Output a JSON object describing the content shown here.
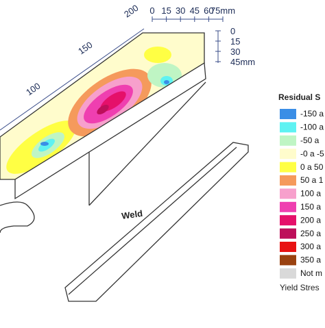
{
  "scale_along": [
    "200",
    "150",
    "100"
  ],
  "scale_width": [
    "0",
    "15",
    "30",
    "45",
    "60",
    "75mm"
  ],
  "scale_depth": [
    "0",
    "15",
    "30",
    "45mm"
  ],
  "weld_label": "Weld",
  "legend": {
    "title": "Residual S",
    "items": [
      {
        "label": "-150 a",
        "color": "#3a8ee6"
      },
      {
        "label": "-100 a",
        "color": "#5ef2f2"
      },
      {
        "label": "-50 a",
        "color": "#bff5c4"
      },
      {
        "label": "-0 a -5",
        "color": "#fffccc"
      },
      {
        "label": "0 a 50",
        "color": "#ffff44"
      },
      {
        "label": "50 a 1",
        "color": "#f59a5c"
      },
      {
        "label": "100 a",
        "color": "#f7a0cc"
      },
      {
        "label": "150 a",
        "color": "#ef3fb0"
      },
      {
        "label": "200 a",
        "color": "#e5106a"
      },
      {
        "label": "250 a",
        "color": "#bd0f5a"
      },
      {
        "label": "300 a",
        "color": "#e81212"
      },
      {
        "label": "350 a",
        "color": "#9a4210"
      },
      {
        "label": "Not m",
        "color": "#d9d9d9"
      }
    ],
    "note": "Yield Stres"
  }
}
